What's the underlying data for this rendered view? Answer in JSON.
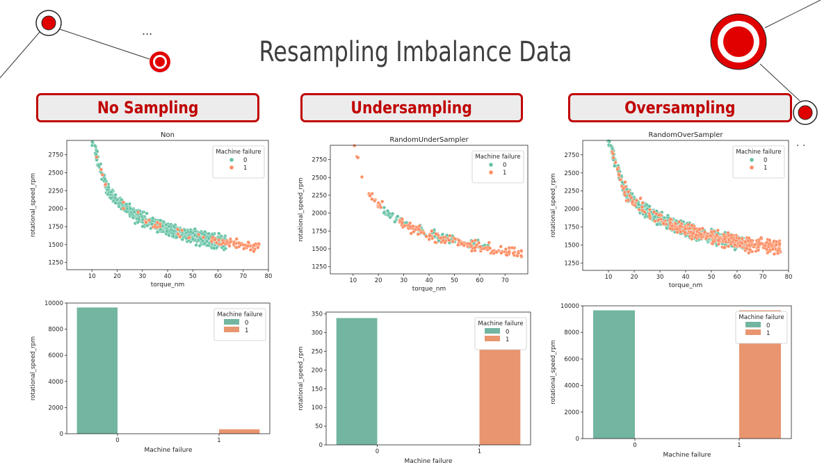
{
  "title": "Resampling Imbalance Data",
  "decor": {
    "dots_left": "...",
    "dots_right": ". .",
    "accent": "#c00000"
  },
  "columns": [
    {
      "label": "No Sampling"
    },
    {
      "label": "Undersampling"
    },
    {
      "label": "Oversampling"
    }
  ],
  "colors": {
    "class0": "#66c2a5",
    "class1": "#fc8d62",
    "bar0": "#72b5a0",
    "bar1": "#e9956f"
  },
  "chart_data": [
    {
      "type": "scatter",
      "title": "Non",
      "xlabel": "torque_nm",
      "ylabel": "rotational_speed_rpm",
      "xlim": [
        0,
        80
      ],
      "ylim": [
        1150,
        2950
      ],
      "xticks": [
        10,
        20,
        30,
        40,
        50,
        60,
        70,
        80
      ],
      "yticks": [
        1250,
        1500,
        1750,
        2000,
        2250,
        2500,
        2750
      ],
      "legend": {
        "title": "Machine failure",
        "entries": [
          "0",
          "1"
        ],
        "placement": "top-right"
      },
      "series": [
        {
          "name": "0",
          "density": "dense",
          "x_range": [
            3,
            68
          ],
          "y_range": [
            1180,
            2890
          ]
        },
        {
          "name": "1",
          "density": "sparse-tail",
          "x_range": [
            3,
            77
          ],
          "y_range": [
            1180,
            2890
          ]
        }
      ]
    },
    {
      "type": "scatter",
      "title": "RandomUnderSampler",
      "xlabel": "torque_nm",
      "ylabel": "rotational_speed_rpm",
      "xlim": [
        1,
        79
      ],
      "ylim": [
        1150,
        2950
      ],
      "xticks": [
        10,
        20,
        30,
        40,
        50,
        60,
        70
      ],
      "yticks": [
        1250,
        1500,
        1750,
        2000,
        2250,
        2500,
        2750
      ],
      "legend": {
        "title": "Machine failure",
        "entries": [
          "0",
          "1"
        ],
        "placement": "top-right"
      },
      "series": [
        {
          "name": "0",
          "count": 339,
          "x_range": [
            15,
            65
          ],
          "y_range": [
            1250,
            1900
          ]
        },
        {
          "name": "1",
          "count": 339,
          "x_range": [
            3,
            77
          ],
          "y_range": [
            1200,
            2890
          ]
        }
      ]
    },
    {
      "type": "scatter",
      "title": "RandomOverSampler",
      "xlabel": "torque_nm",
      "ylabel": "rotational_speed_rpm",
      "xlim": [
        0,
        80
      ],
      "ylim": [
        1150,
        2950
      ],
      "xticks": [
        10,
        20,
        30,
        40,
        50,
        60,
        70,
        80
      ],
      "yticks": [
        1250,
        1500,
        1750,
        2000,
        2250,
        2500,
        2750
      ],
      "legend": {
        "title": "Machine failure",
        "entries": [
          "0",
          "1"
        ],
        "placement": "top-right"
      },
      "series": [
        {
          "name": "0",
          "density": "dense",
          "x_range": [
            3,
            68
          ],
          "y_range": [
            1180,
            2890
          ]
        },
        {
          "name": "1",
          "density": "dense",
          "x_range": [
            3,
            77
          ],
          "y_range": [
            1180,
            2890
          ]
        }
      ]
    },
    {
      "type": "bar",
      "xlabel": "Machine failure",
      "ylabel": "rotational_speed_rpm",
      "categories": [
        "0",
        "1"
      ],
      "ylim": [
        0,
        10000
      ],
      "yticks": [
        0,
        2000,
        4000,
        6000,
        8000,
        10000
      ],
      "legend": {
        "title": "Machine failure",
        "entries": [
          "0",
          "1"
        ],
        "placement": "top-right"
      },
      "series": [
        {
          "name": "0",
          "values": [
            9661,
            0
          ]
        },
        {
          "name": "1",
          "values": [
            0,
            339
          ]
        }
      ]
    },
    {
      "type": "bar",
      "xlabel": "Machine failure",
      "ylabel": "rotational_speed_rpm",
      "categories": [
        "0",
        "1"
      ],
      "ylim": [
        0,
        355
      ],
      "yticks": [
        0,
        50,
        100,
        150,
        200,
        250,
        300,
        350
      ],
      "legend": {
        "title": "Machine failure",
        "entries": [
          "0",
          "1"
        ],
        "placement": "top-right"
      },
      "series": [
        {
          "name": "0",
          "values": [
            339,
            0
          ]
        },
        {
          "name": "1",
          "values": [
            0,
            339
          ]
        }
      ]
    },
    {
      "type": "bar",
      "xlabel": "Machine failure",
      "ylabel": "rotational_speed_rpm",
      "categories": [
        "0",
        "1"
      ],
      "ylim": [
        0,
        10000
      ],
      "yticks": [
        0,
        2000,
        4000,
        6000,
        8000,
        10000
      ],
      "legend": {
        "title": "Machine failure",
        "entries": [
          "0",
          "1"
        ],
        "placement": "top-right"
      },
      "series": [
        {
          "name": "0",
          "values": [
            9661,
            0
          ]
        },
        {
          "name": "1",
          "values": [
            0,
            9661
          ]
        }
      ]
    }
  ]
}
